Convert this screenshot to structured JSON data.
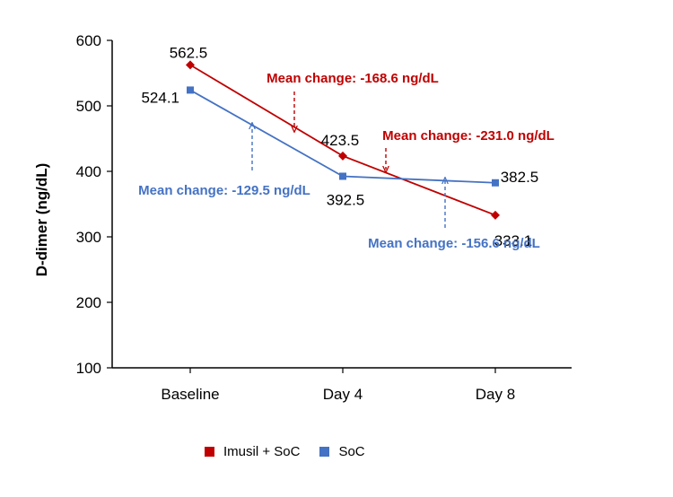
{
  "chart_data": {
    "type": "line",
    "categories": [
      "Baseline",
      "Day 4",
      "Day 8"
    ],
    "ylabel": "D-dimer (ng/dL)",
    "xlabel": "",
    "ylim": [
      100,
      600
    ],
    "yticks": [
      100,
      200,
      300,
      400,
      500,
      600
    ],
    "series": [
      {
        "name": "Imusil + SoC",
        "color": "#c00000",
        "marker": "diamond",
        "values": [
          562.5,
          423.5,
          333.1
        ],
        "labels": [
          "562.5",
          "423.5",
          "333.1"
        ]
      },
      {
        "name": "SoC",
        "color": "#4472c4",
        "marker": "square",
        "values": [
          524.1,
          392.5,
          382.5
        ],
        "labels": [
          "524.1",
          "392.5",
          "382.5"
        ]
      }
    ],
    "annotations": [
      {
        "text": "Mean change: -168.6 ng/dL",
        "series": 0,
        "segment": [
          0,
          1
        ],
        "color": "#c00000"
      },
      {
        "text": "Mean change: -231.0 ng/dL",
        "series": 0,
        "segment": [
          1,
          2
        ],
        "color": "#c00000"
      },
      {
        "text": "Mean change: -129.5 ng/dL",
        "series": 1,
        "segment": [
          0,
          1
        ],
        "color": "#4472c4"
      },
      {
        "text": "Mean change: -156.6 ng/dL",
        "series": 1,
        "segment": [
          1,
          2
        ],
        "color": "#4472c4"
      }
    ],
    "legend": "bottom-center",
    "grid": false
  }
}
